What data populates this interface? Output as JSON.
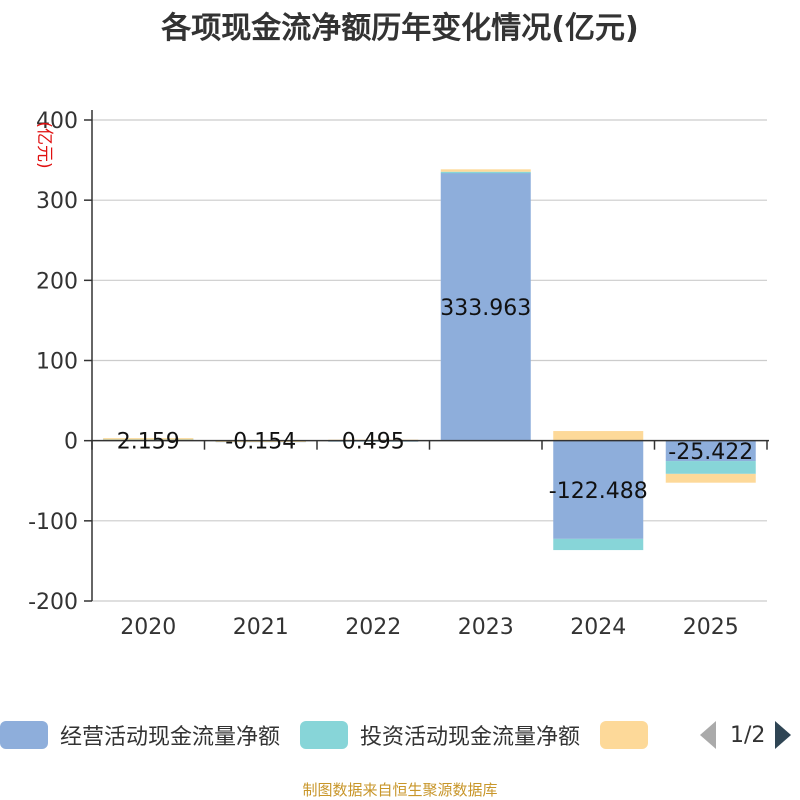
{
  "chart_data": {
    "type": "bar",
    "stacked": true,
    "title": "各项现金流净额历年变化情况(亿元)",
    "ylabel": "(亿元)",
    "xlabel": "",
    "categories": [
      "2020",
      "2021",
      "2022",
      "2023",
      "2024",
      "2025"
    ],
    "ylim": [
      -200,
      400
    ],
    "yticks": [
      400,
      300,
      200,
      100,
      0,
      -100,
      -200
    ],
    "grid": true,
    "series": [
      {
        "name": "经营活动现金流量净额",
        "color": "#8eaedb",
        "values": [
          2.159,
          -0.154,
          0.495,
          333.963,
          -122.488,
          -25.422
        ],
        "labels": [
          "2.159",
          "-0.154",
          "0.495",
          "333.963",
          "-122.488",
          "-25.422"
        ]
      },
      {
        "name": "投资活动现金流量净额",
        "color": "#87d5d8",
        "values": [
          0.6,
          0.2,
          0.3,
          1.5,
          -14.0,
          -16.0
        ]
      },
      {
        "name": "",
        "color": "#fdd999",
        "values": [
          0.4,
          0.1,
          0.4,
          3.0,
          12.0,
          -11.0
        ]
      }
    ]
  },
  "legend": {
    "items": [
      {
        "label": "经营活动现金流量净额",
        "color": "#8eaedb"
      },
      {
        "label": "投资活动现金流量净额",
        "color": "#87d5d8"
      },
      {
        "label": "",
        "color": "#fdd999"
      }
    ],
    "page_text": "1/2"
  },
  "footer": {
    "source": "制图数据来自恒生聚源数据库"
  }
}
